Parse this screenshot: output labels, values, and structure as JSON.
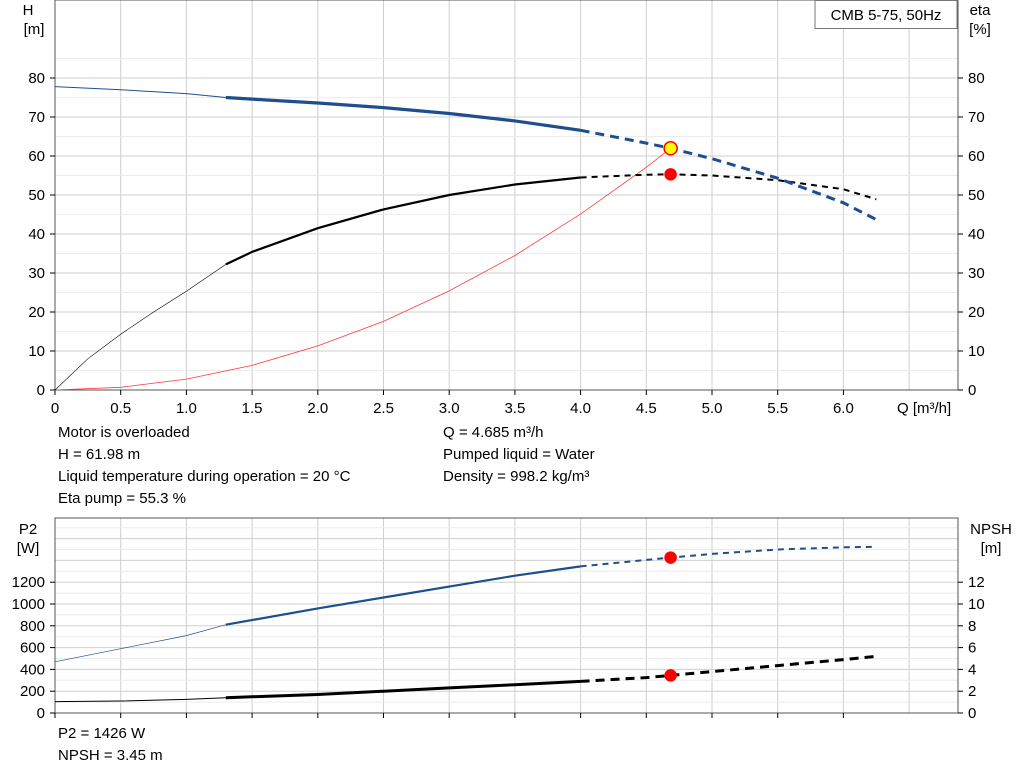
{
  "chart_data": [
    {
      "type": "line",
      "title": "CMB 5-75, 50Hz",
      "xlabel": "Q [m³/h]",
      "ylabel": [
        "H",
        "[m]"
      ],
      "y2label": [
        "eta",
        "[%]"
      ],
      "xlim": [
        0,
        6.9
      ],
      "ylim": [
        0,
        88
      ],
      "y2lim": [
        0,
        88
      ],
      "x_ticks": [
        "0",
        "0.5",
        "1.0",
        "1.5",
        "2.0",
        "2.5",
        "3.0",
        "3.5",
        "4.0",
        "4.5",
        "5.0",
        "5.5",
        "6.0"
      ],
      "x_tick_values": [
        0,
        0.5,
        1,
        1.5,
        2,
        2.5,
        3,
        3.5,
        4,
        4.5,
        5,
        5.5,
        6
      ],
      "y_ticks": [
        "0",
        "10",
        "20",
        "30",
        "40",
        "50",
        "60",
        "70",
        "80"
      ],
      "y_tick_values": [
        0,
        10,
        20,
        30,
        40,
        50,
        60,
        70,
        80
      ],
      "grid": true,
      "series": [
        {
          "key": "H",
          "color": "#1f4e8c",
          "points": [
            [
              0,
              77.8
            ],
            [
              0.5,
              77
            ],
            [
              1.0,
              76
            ],
            [
              1.3,
              75
            ],
            [
              1.5,
              74.6
            ],
            [
              2.0,
              73.6
            ],
            [
              2.5,
              72.4
            ],
            [
              3.0,
              70.9
            ],
            [
              3.5,
              69.0
            ],
            [
              4.0,
              66.6
            ],
            [
              4.5,
              63.3
            ],
            [
              4.685,
              61.98
            ],
            [
              5.0,
              59.3
            ],
            [
              5.5,
              54.3
            ],
            [
              6.0,
              48.0
            ],
            [
              6.25,
              43.7
            ]
          ]
        },
        {
          "key": "eta",
          "color": "#000000",
          "points": [
            [
              0,
              0
            ],
            [
              0.25,
              8
            ],
            [
              0.5,
              14.3
            ],
            [
              0.75,
              20
            ],
            [
              1.0,
              25.3
            ],
            [
              1.3,
              32.2
            ],
            [
              1.5,
              35.4
            ],
            [
              2.0,
              41.5
            ],
            [
              2.5,
              46.3
            ],
            [
              3.0,
              50
            ],
            [
              3.5,
              52.7
            ],
            [
              4.0,
              54.5
            ],
            [
              4.5,
              55.2
            ],
            [
              4.685,
              55.3
            ],
            [
              5.0,
              55.0
            ],
            [
              5.5,
              53.8
            ],
            [
              6.0,
              51.5
            ],
            [
              6.25,
              48.9
            ]
          ]
        },
        {
          "key": "system",
          "color": "#ff3b3b",
          "points": [
            [
              0,
              0
            ],
            [
              0.5,
              0.7
            ],
            [
              1.0,
              2.8
            ],
            [
              1.5,
              6.3
            ],
            [
              2.0,
              11.3
            ],
            [
              2.5,
              17.6
            ],
            [
              3.0,
              25.4
            ],
            [
              3.5,
              34.5
            ],
            [
              4.0,
              45.1
            ],
            [
              4.5,
              57.1
            ],
            [
              4.685,
              61.98
            ]
          ]
        }
      ],
      "markers": [
        {
          "x": 4.685,
          "y": 61.98,
          "color": "#ffff00",
          "edge": "#ff0000"
        },
        {
          "x": 4.685,
          "y": 55.3,
          "color": "#ff0000",
          "edge": "#ff0000"
        }
      ],
      "solid_range": [
        1.3,
        4.0
      ]
    },
    {
      "type": "line",
      "xlim": [
        0,
        6.9
      ],
      "ylabel": [
        "P2",
        "[W]"
      ],
      "y2label": [
        "NPSH",
        "[m]"
      ],
      "ylim": [
        0,
        1500
      ],
      "y2lim": [
        0,
        15
      ],
      "y_ticks": [
        "0",
        "200",
        "400",
        "600",
        "800",
        "1000",
        "1200"
      ],
      "y_tick_values": [
        0,
        200,
        400,
        600,
        800,
        1000,
        1200
      ],
      "y2_ticks": [
        "0",
        "2",
        "4",
        "6",
        "8",
        "10",
        "12"
      ],
      "y2_tick_values": [
        0,
        2,
        4,
        6,
        8,
        10,
        12
      ],
      "grid": true,
      "series": [
        {
          "key": "P2",
          "axis": "left",
          "color": "#1f4e8c",
          "points": [
            [
              0,
              470
            ],
            [
              0.5,
              590
            ],
            [
              1.0,
              710
            ],
            [
              1.3,
              810
            ],
            [
              2.0,
              960
            ],
            [
              2.5,
              1060
            ],
            [
              3.0,
              1160
            ],
            [
              3.5,
              1260
            ],
            [
              4.0,
              1345
            ],
            [
              4.5,
              1405
            ],
            [
              4.685,
              1426
            ],
            [
              5.0,
              1460
            ],
            [
              5.5,
              1500
            ],
            [
              6.0,
              1520
            ],
            [
              6.25,
              1525
            ]
          ]
        },
        {
          "key": "NPSH",
          "axis": "right",
          "color": "#000000",
          "points": [
            [
              0,
              1.05
            ],
            [
              0.5,
              1.1
            ],
            [
              1.0,
              1.25
            ],
            [
              1.3,
              1.4
            ],
            [
              2.0,
              1.7
            ],
            [
              2.5,
              2.0
            ],
            [
              3.0,
              2.3
            ],
            [
              3.5,
              2.6
            ],
            [
              4.0,
              2.9
            ],
            [
              4.5,
              3.25
            ],
            [
              4.685,
              3.45
            ],
            [
              5.0,
              3.8
            ],
            [
              5.5,
              4.35
            ],
            [
              6.0,
              4.9
            ],
            [
              6.25,
              5.2
            ]
          ]
        }
      ],
      "markers": [
        {
          "x": 4.685,
          "y": 1426,
          "axis": "left",
          "color": "#ff0000",
          "edge": "#ff0000"
        },
        {
          "x": 4.685,
          "y": 3.45,
          "axis": "right",
          "color": "#ff0000",
          "edge": "#ff0000"
        }
      ],
      "solid_range": [
        1.3,
        4.0
      ]
    }
  ],
  "info": {
    "col1": [
      "Motor is overloaded",
      "H = 61.98 m",
      "Liquid temperature during operation = 20 °C",
      "Eta pump = 55.3 %"
    ],
    "col2": [
      "Q = 4.685 m³/h",
      "Pumped liquid = Water",
      "Density = 998.2 kg/m³"
    ],
    "bottom": [
      "P2 = 1426 W",
      "NPSH = 3.45 m"
    ]
  }
}
